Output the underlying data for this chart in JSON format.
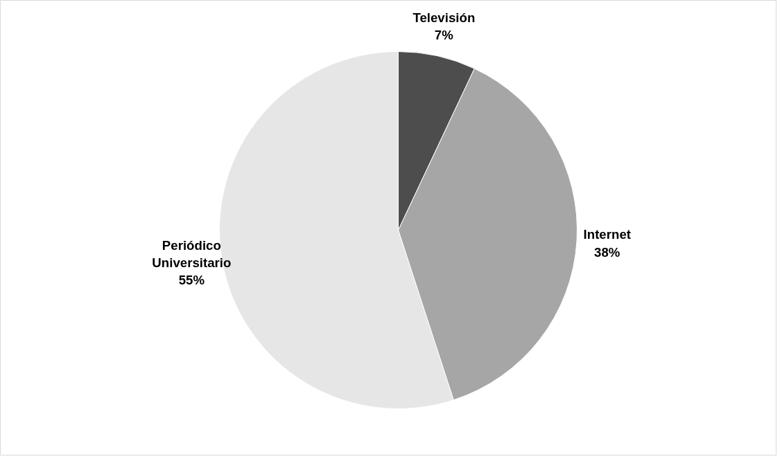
{
  "chart_data": {
    "type": "pie",
    "categories": [
      "Televisión",
      "Internet",
      "Periódico Universitario"
    ],
    "values": [
      7,
      38,
      55
    ],
    "colors": [
      "#4d4d4d",
      "#a6a6a6",
      "#e6e6e6"
    ],
    "value_labels": [
      "7%",
      "38%",
      "55%"
    ]
  }
}
